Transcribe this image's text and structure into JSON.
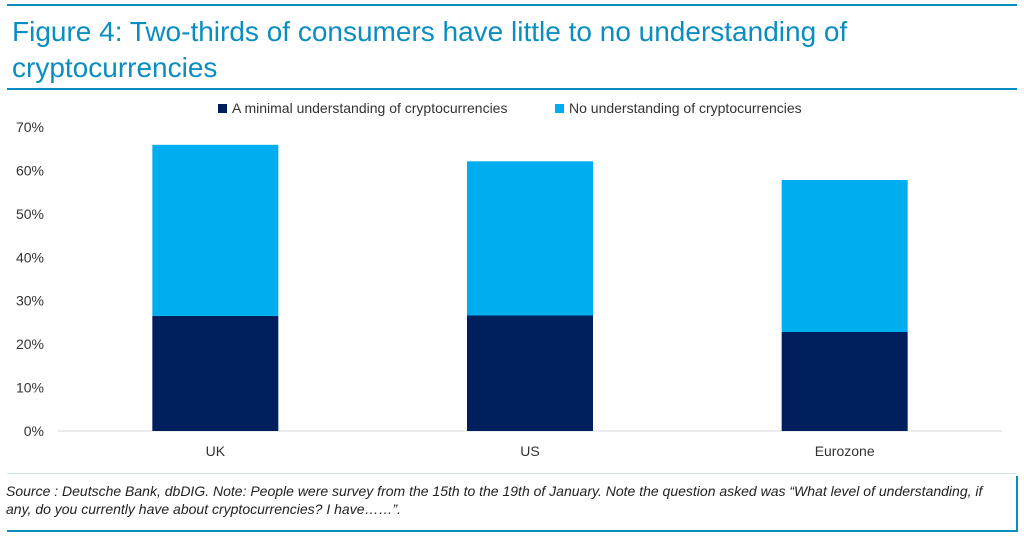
{
  "header": {
    "title": "Figure 4: Two-thirds of consumers have little to no understanding of cryptocurrencies"
  },
  "colors": {
    "minimal": "#001f5c",
    "none": "#00aeef",
    "accent": "#0a8ec2"
  },
  "chart_data": {
    "type": "bar",
    "stacked": true,
    "title": "Figure 4: Two-thirds of consumers have little to no understanding of cryptocurrencies",
    "categories": [
      "UK",
      "US",
      "Eurozone"
    ],
    "series": [
      {
        "name": "A minimal understanding of cryptocurrencies",
        "values": [
          26.5,
          26.6,
          22.8
        ]
      },
      {
        "name": "No understanding of cryptocurrencies",
        "values": [
          39.4,
          35.5,
          35.0
        ]
      }
    ],
    "y_ticks": [
      "0%",
      "10%",
      "20%",
      "30%",
      "40%",
      "50%",
      "60%",
      "70%"
    ],
    "ylim": [
      0,
      70
    ],
    "xlabel": "",
    "ylabel": "",
    "legend_position": "top-center",
    "grid": false
  },
  "footer": {
    "source": "Source : Deutsche Bank, dbDIG. Note: People were survey from the 15th to the 19th of January. Note the question asked was “What level of understanding, if any, do you currently have about cryptocurrencies? I have……”."
  }
}
